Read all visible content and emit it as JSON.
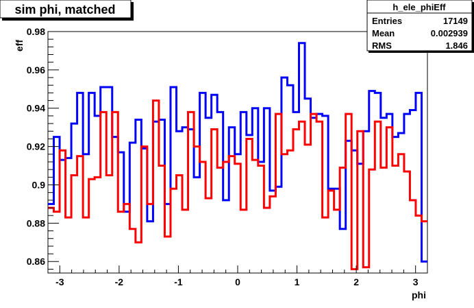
{
  "chart_data": {
    "type": "line",
    "title": "sim phi, matched",
    "xlabel": "phi",
    "ylabel": "eff",
    "xlim": [
      -3.2,
      3.2
    ],
    "ylim": [
      0.854,
      0.98
    ],
    "x_ticks": [
      -3,
      -2,
      -1,
      0,
      1,
      2,
      3
    ],
    "x_tick_labels": [
      "-3",
      "-2",
      "-1",
      "0",
      "1",
      "2",
      "3"
    ],
    "y_ticks": [
      0.86,
      0.88,
      0.9,
      0.92,
      0.94,
      0.96,
      0.98
    ],
    "y_tick_labels": [
      "0.86",
      "0.88",
      "0.9",
      "0.92",
      "0.94",
      "0.96",
      "0.98"
    ],
    "grid": false,
    "draw_style": "step",
    "bin_edges_note": "64 equal bins from -3.2 to 3.2",
    "stats_box": {
      "title": "h_ele_phiEff",
      "entries_label": "Entries",
      "entries_value": "17149",
      "mean_label": "Mean",
      "mean_value": "0.002939",
      "rms_label": "RMS",
      "rms_value": "1.846"
    },
    "series": [
      {
        "color": "#0000ff",
        "values": [
          0.89,
          0.925,
          0.913,
          0.914,
          0.932,
          0.948,
          0.916,
          0.948,
          0.936,
          0.951,
          0.951,
          0.925,
          0.917,
          0.886,
          0.922,
          0.934,
          0.919,
          0.881,
          0.933,
          0.934,
          0.89,
          0.951,
          0.928,
          0.93,
          0.929,
          0.904,
          0.948,
          0.935,
          0.947,
          0.938,
          0.892,
          0.93,
          0.916,
          0.938,
          0.926,
          0.94,
          0.912,
          0.94,
          0.897,
          0.899,
          0.956,
          0.952,
          0.938,
          0.974,
          0.945,
          0.935,
          0.937,
          0.936,
          0.898,
          0.898,
          0.877,
          0.923,
          0.918,
          0.911,
          0.928,
          0.949,
          0.948,
          0.935,
          0.937,
          0.925,
          0.927,
          0.937,
          0.939,
          0.948,
          0.86
        ]
      },
      {
        "color": "#ff0000",
        "values": [
          0.888,
          0.886,
          0.918,
          0.883,
          0.905,
          0.915,
          0.883,
          0.903,
          0.904,
          0.938,
          0.905,
          0.938,
          0.886,
          0.89,
          0.877,
          0.87,
          0.92,
          0.89,
          0.944,
          0.91,
          0.873,
          0.898,
          0.905,
          0.887,
          0.938,
          0.92,
          0.912,
          0.893,
          0.929,
          0.909,
          0.912,
          0.915,
          0.911,
          0.887,
          0.924,
          0.913,
          0.91,
          0.888,
          0.894,
          0.937,
          0.916,
          0.918,
          0.929,
          0.933,
          0.921,
          0.937,
          0.933,
          0.883,
          0.897,
          0.887,
          0.909,
          0.937,
          0.856,
          0.928,
          0.857,
          0.908,
          0.933,
          0.909,
          0.93,
          0.91,
          0.916,
          0.907,
          0.892,
          0.884,
          0.881
        ]
      }
    ]
  }
}
